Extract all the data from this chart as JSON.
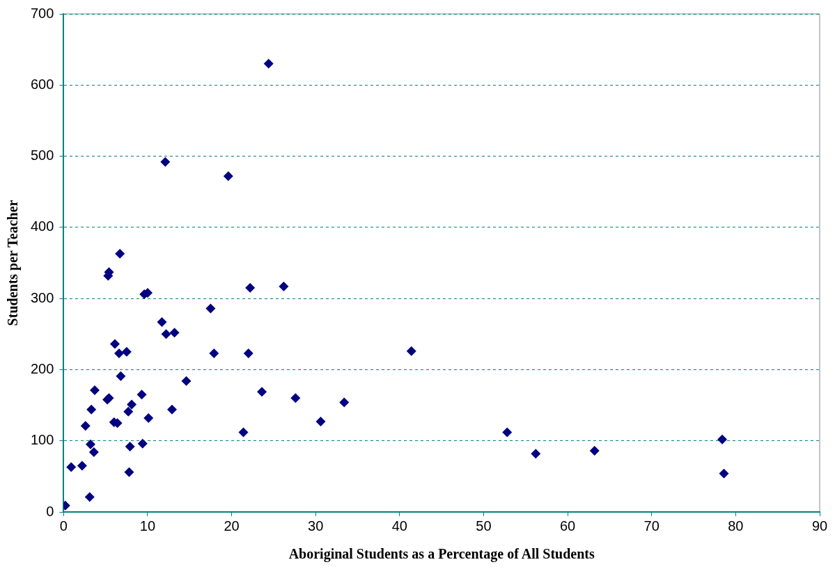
{
  "chart_data": {
    "type": "scatter",
    "xlabel": "Aboriginal Students as a Percentage of All Students",
    "ylabel": "Students per Teacher",
    "x": [
      0.2,
      0.9,
      2.2,
      2.6,
      3.1,
      3.2,
      3.3,
      3.6,
      3.7,
      5.2,
      5.4,
      5.3,
      5.4,
      6.0,
      6.1,
      6.4,
      6.6,
      6.7,
      6.8,
      7.5,
      7.7,
      7.8,
      7.9,
      8.1,
      9.3,
      9.4,
      9.6,
      10.0,
      10.1,
      11.7,
      12.1,
      12.2,
      12.9,
      13.2,
      14.6,
      17.5,
      17.9,
      19.6,
      21.4,
      22.0,
      22.2,
      23.6,
      24.4,
      26.2,
      27.6,
      30.6,
      33.4,
      41.4,
      52.8,
      56.2,
      63.2,
      78.4,
      78.6
    ],
    "series": [
      {
        "color": "#000080",
        "values": [
          9,
          63,
          65,
          121,
          21,
          95,
          144,
          84,
          171,
          158,
          160,
          332,
          337,
          126,
          236,
          125,
          223,
          363,
          191,
          225,
          141,
          56,
          92,
          151,
          165,
          96,
          306,
          308,
          132,
          267,
          492,
          250,
          144,
          252,
          184,
          286,
          223,
          472,
          112,
          223,
          315,
          169,
          630,
          317,
          160,
          127,
          154,
          226,
          112,
          82,
          86,
          102,
          54
        ]
      }
    ],
    "xlim": [
      0,
      90
    ],
    "xticks": [
      0,
      10,
      20,
      30,
      40,
      50,
      60,
      70,
      80,
      90
    ],
    "ylim": [
      0,
      700
    ],
    "yticks": [
      0,
      100,
      200,
      300,
      400,
      500,
      600,
      700
    ],
    "grid": "y",
    "legend": false,
    "marker": "diamond"
  }
}
